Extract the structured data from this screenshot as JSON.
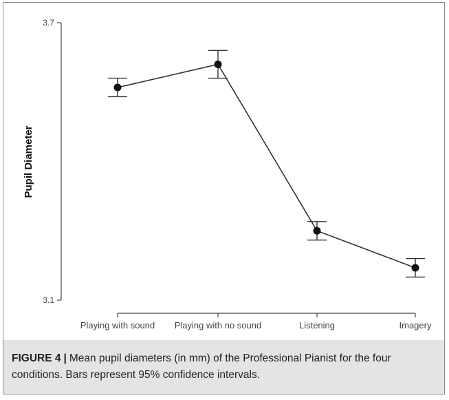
{
  "chart_data": {
    "type": "line",
    "title": "",
    "xlabel": "",
    "ylabel": "Pupil Diameter",
    "ylim": [
      3.1,
      3.7
    ],
    "y_ticks": [
      "3.7",
      "3.1"
    ],
    "categories": [
      "Playing with sound",
      "Playing with no sound",
      "Listening",
      "Imagery"
    ],
    "series": [
      {
        "values": [
          3.56,
          3.61,
          3.25,
          3.17
        ],
        "ci_lower": [
          3.54,
          3.58,
          3.23,
          3.15
        ],
        "ci_upper": [
          3.58,
          3.64,
          3.27,
          3.19
        ]
      }
    ],
    "grid": false,
    "legend": "none",
    "colors": {
      "line": "#333333",
      "marker": "#111111",
      "axis": "#444444"
    }
  },
  "caption": {
    "label": "FIGURE 4",
    "separator": "|",
    "text": "Mean pupil diameters (in mm) of the Professional Pianist for the four conditions. Bars represent 95% confidence intervals."
  }
}
